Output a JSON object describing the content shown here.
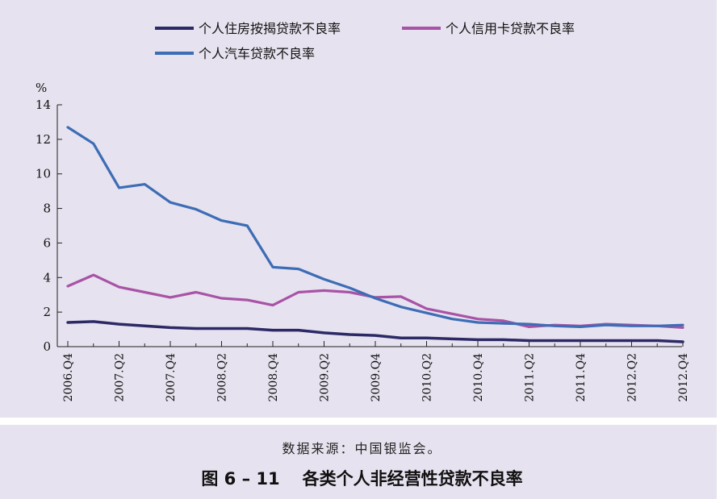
{
  "figure": {
    "source_note": "数据来源：中国银监会。",
    "number": "图 6 – 11",
    "title": "各类个人非经营性贷款不良率"
  },
  "colors": {
    "panel_bg": "#e7e2ef",
    "mortgage": "#2c2a66",
    "credit_card": "#a853a6",
    "auto": "#3c6db5"
  },
  "chart_data": {
    "type": "line",
    "ylabel": "%",
    "ylim": [
      0,
      14
    ],
    "yticks": [
      0,
      2,
      4,
      6,
      8,
      10,
      12,
      14
    ],
    "x": [
      "2006.Q4",
      "2007.Q1",
      "2007.Q2",
      "2007.Q3",
      "2007.Q4",
      "2008.Q1",
      "2008.Q2",
      "2008.Q3",
      "2008.Q4",
      "2009.Q1",
      "2009.Q2",
      "2009.Q3",
      "2009.Q4",
      "2010.Q1",
      "2010.Q2",
      "2010.Q3",
      "2010.Q4",
      "2011.Q1",
      "2011.Q2",
      "2011.Q3",
      "2011.Q4",
      "2012.Q1",
      "2012.Q2",
      "2012.Q3",
      "2012.Q4"
    ],
    "xtick_labels": [
      "2006.Q4",
      "2007.Q2",
      "2007.Q4",
      "2008.Q2",
      "2008.Q4",
      "2009.Q2",
      "2009.Q4",
      "2010.Q2",
      "2010.Q4",
      "2011.Q2",
      "2011.Q4",
      "2012.Q2",
      "2012.Q4"
    ],
    "grid": false,
    "legend_position": "top",
    "series": [
      {
        "name": "个人住房按揭贷款不良率",
        "color": "#2c2a66",
        "values": [
          1.4,
          1.45,
          1.3,
          1.2,
          1.1,
          1.05,
          1.05,
          1.05,
          0.95,
          0.95,
          0.8,
          0.7,
          0.65,
          0.5,
          0.5,
          0.45,
          0.4,
          0.4,
          0.35,
          0.35,
          0.35,
          0.35,
          0.35,
          0.35,
          0.28
        ]
      },
      {
        "name": "个人信用卡贷款不良率",
        "color": "#a853a6",
        "values": [
          3.5,
          4.15,
          3.45,
          3.15,
          2.85,
          3.15,
          2.8,
          2.7,
          2.4,
          3.15,
          3.25,
          3.15,
          2.85,
          2.9,
          2.2,
          1.9,
          1.6,
          1.5,
          1.15,
          1.25,
          1.2,
          1.3,
          1.25,
          1.2,
          1.1
        ]
      },
      {
        "name": "个人汽车贷款不良率",
        "color": "#3c6db5",
        "values": [
          12.7,
          11.75,
          9.2,
          9.4,
          8.35,
          7.95,
          7.3,
          7.0,
          4.6,
          4.5,
          3.9,
          3.4,
          2.8,
          2.3,
          1.95,
          1.6,
          1.4,
          1.35,
          1.3,
          1.2,
          1.15,
          1.25,
          1.2,
          1.2,
          1.25
        ]
      }
    ]
  }
}
